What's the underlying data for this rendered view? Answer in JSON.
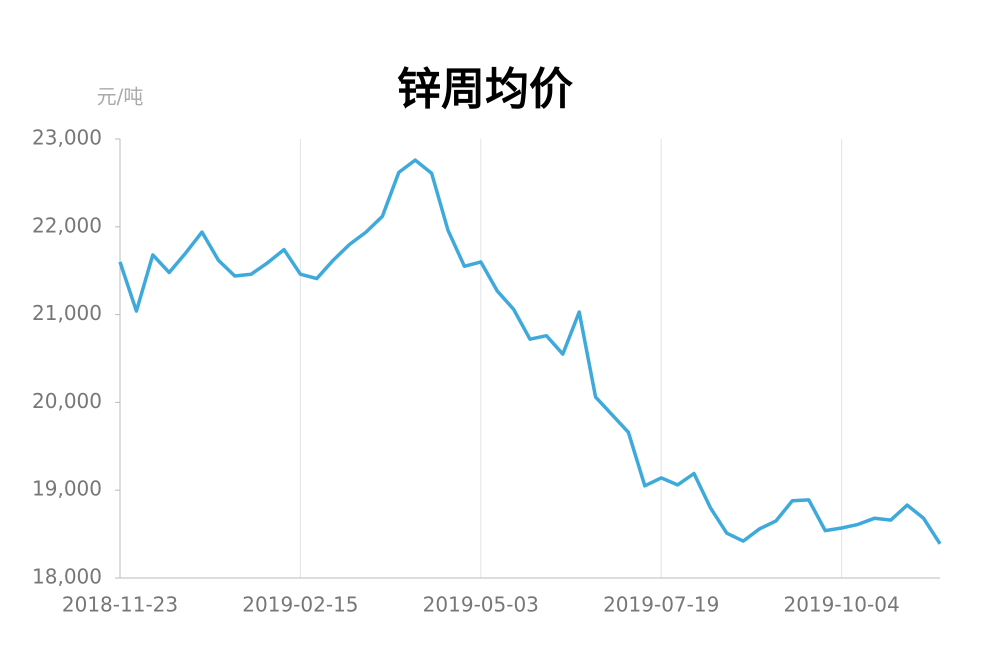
{
  "chart_data": {
    "type": "line",
    "title": "锌周均价",
    "y_unit": "元/吨",
    "categories": [
      "2018-11-23",
      null,
      null,
      null,
      null,
      null,
      null,
      null,
      null,
      null,
      null,
      "2019-02-15",
      null,
      null,
      null,
      null,
      null,
      null,
      null,
      null,
      null,
      null,
      "2019-05-03",
      null,
      null,
      null,
      null,
      null,
      null,
      null,
      null,
      null,
      null,
      "2019-07-19",
      null,
      null,
      null,
      null,
      null,
      null,
      null,
      null,
      null,
      null,
      "2019-10-04",
      null,
      null,
      null,
      null,
      null,
      null
    ],
    "values": [
      21600,
      21040,
      21680,
      21480,
      21700,
      21940,
      21620,
      21440,
      21460,
      21590,
      21740,
      21460,
      21410,
      21620,
      21800,
      21940,
      22120,
      22620,
      22760,
      22610,
      21960,
      21550,
      21600,
      21270,
      21060,
      20720,
      20760,
      20550,
      21030,
      20060,
      19860,
      19660,
      19050,
      19140,
      19060,
      19190,
      18800,
      18510,
      18420,
      18560,
      18650,
      18880,
      18890,
      18540,
      18570,
      18610,
      18680,
      18660,
      18830,
      18680,
      18390
    ],
    "color": "#3eaadc",
    "ylim": [
      18000,
      23000
    ],
    "yticks": [
      {
        "value": 18000,
        "label": "18,000"
      },
      {
        "value": 19000,
        "label": "19,000"
      },
      {
        "value": 20000,
        "label": "20,000"
      },
      {
        "value": 21000,
        "label": "21,000"
      },
      {
        "value": 22000,
        "label": "22,000"
      },
      {
        "value": 23000,
        "label": "23,000"
      }
    ],
    "x_grid": true
  }
}
